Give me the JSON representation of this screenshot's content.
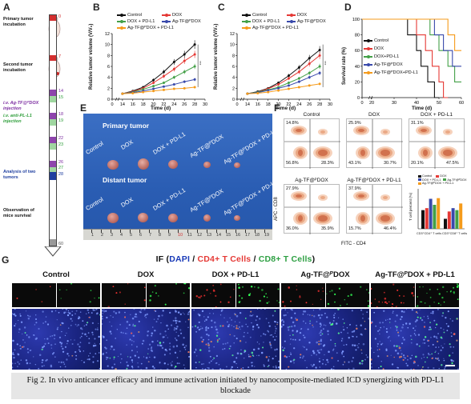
{
  "panels": {
    "A": "A",
    "B": "B",
    "C": "C",
    "D": "D",
    "E": "E",
    "F": "F",
    "G": "G"
  },
  "timeline": {
    "ticks": [
      "0",
      "7",
      "14",
      "15",
      "18",
      "19",
      "22",
      "23",
      "26",
      "27",
      "28",
      "60"
    ],
    "events": {
      "primary": "Primary tumor incubation",
      "second": "Second tumor incubation",
      "iv": "i.v. Ag-TF@ᴾDOX injection",
      "ip": "i.v. anti-PL-L1 injection",
      "analysis": "Analysis of two tumors",
      "observation": "Observation of mice survival"
    }
  },
  "legend_tumor": {
    "control": "Control",
    "dox": "DOX",
    "dox_pdl1": "DOX + PD-L1",
    "agtf_dox": "Ag-TF@ᴾDOX",
    "agtf_dox_pdl1": "Ag-TF@ᴾDOX + PD-L1"
  },
  "legend_survival": {
    "control": "Control",
    "dox": "DOX",
    "dox_pdl1": "DOX+PD-L1",
    "agtf_dox": "Ag-TF@ᴾDOX",
    "agtf_dox_pdl1": "Ag-TF@ᴾDOX+PD-L1"
  },
  "colors": {
    "control": "#111111",
    "dox": "#e53935",
    "dox_pdl1": "#43a047",
    "agtf_dox": "#3949ab",
    "agtf_dox_pdl1": "#f59b1b"
  },
  "chart_data": [
    {
      "panel": "B",
      "type": "line",
      "ylabel": "Relative tumor volume (V/V₀)",
      "xlabel": "Time (d)",
      "x_ticks": [
        "0",
        "14",
        "16",
        "18",
        "20",
        "22",
        "24",
        "26",
        "28",
        "30"
      ],
      "y_ticks": [
        "0",
        "2",
        "4",
        "6",
        "8",
        "10",
        "12"
      ],
      "ylim": [
        0,
        12
      ],
      "x": [
        14,
        16,
        18,
        20,
        22,
        24,
        26,
        28
      ],
      "series": [
        {
          "name": "Control",
          "values": [
            1,
            1.5,
            2.2,
            3.5,
            5,
            6.8,
            8.2,
            10
          ]
        },
        {
          "name": "DOX",
          "values": [
            1,
            1.4,
            2,
            3,
            4.2,
            5.5,
            7,
            8.2
          ]
        },
        {
          "name": "DOX + PD-L1",
          "values": [
            1,
            1.3,
            1.8,
            2.4,
            3,
            4,
            5,
            6
          ]
        },
        {
          "name": "Ag-TF@ᴾDOX",
          "values": [
            1,
            1.2,
            1.5,
            1.9,
            2.3,
            2.7,
            3.2,
            3.6
          ]
        },
        {
          "name": "Ag-TF@ᴾDOX + PD-L1",
          "values": [
            1,
            1.1,
            1.3,
            1.5,
            1.7,
            1.9,
            2,
            2.2
          ]
        }
      ]
    },
    {
      "panel": "C",
      "type": "line",
      "ylabel": "Relative tumor volume (V/V₀)",
      "xlabel": "Time (d)",
      "x_ticks": [
        "0",
        "14",
        "16",
        "18",
        "20",
        "22",
        "24",
        "26",
        "28",
        "30"
      ],
      "y_ticks": [
        "0",
        "2",
        "4",
        "6",
        "8",
        "10",
        "12"
      ],
      "ylim": [
        0,
        12
      ],
      "x": [
        14,
        16,
        18,
        20,
        22,
        24,
        26,
        28
      ],
      "series": [
        {
          "name": "Control",
          "values": [
            1,
            1.4,
            2,
            3,
            4.3,
            5.8,
            7.5,
            9
          ]
        },
        {
          "name": "DOX",
          "values": [
            1,
            1.3,
            1.9,
            2.7,
            3.8,
            5,
            6.5,
            8
          ]
        },
        {
          "name": "DOX + PD-L1",
          "values": [
            1,
            1.3,
            1.7,
            2.2,
            3,
            3.8,
            4.8,
            6
          ]
        },
        {
          "name": "Ag-TF@ᴾDOX",
          "values": [
            1,
            1.2,
            1.6,
            2,
            2.5,
            3.2,
            4,
            4.8
          ]
        },
        {
          "name": "Ag-TF@ᴾDOX + PD-L1",
          "values": [
            1,
            1.1,
            1.3,
            1.6,
            1.9,
            2.2,
            2.5,
            2.8
          ]
        }
      ]
    },
    {
      "panel": "D",
      "type": "line",
      "ylabel": "Survival rate (%)",
      "xlabel": "Time (d)",
      "x_ticks": [
        "0",
        "20",
        "30",
        "40",
        "50",
        "60"
      ],
      "y_ticks": [
        "0",
        "20",
        "40",
        "60",
        "80",
        "100"
      ],
      "ylim": [
        0,
        100
      ]
    }
  ],
  "photo": {
    "primary": "Primary tumor",
    "distant": "Distant tumor",
    "groups": [
      "Control",
      "DOX",
      "DOX + PD-L1",
      "Ag-TF@ᴾDOX",
      "Ag-TF@ᴾDOX + PD-L1"
    ],
    "ruler": [
      "1",
      "2",
      "3",
      "4",
      "5",
      "6",
      "7",
      "8",
      "9",
      "10",
      "11",
      "12",
      "13",
      "14",
      "15",
      "16",
      "17",
      "18",
      "19"
    ]
  },
  "flow": {
    "yaxis": "APC - CD8",
    "xaxis": "FITC - CD4",
    "plots": [
      {
        "title": "Control",
        "tl": "14.8%",
        "bl": "56.8%",
        "br": "28.3%"
      },
      {
        "title": "DOX",
        "tl": "25.9%",
        "bl": "43.1%",
        "br": "30.7%"
      },
      {
        "title": "DOX + PD-L1",
        "tl": "31.1%",
        "bl": "20.1%",
        "br": "47.5%"
      },
      {
        "title": "Ag-TF@ᴾDOX",
        "tl": "27.9%",
        "bl": "36.0%",
        "br": "35.9%"
      },
      {
        "title": "Ag-TF@ᴾDOX + PD-L1",
        "tl": "37.9%",
        "bl": "15.7%",
        "br": "46.4%"
      }
    ],
    "bar_ylabel": "T cell percent (%)",
    "bar_legend": [
      "Control",
      "DOX",
      "DOX + PD-L1",
      "Ag-TF@ᴾDOX",
      "Ag-TF@ᴾDOX + PD-L1"
    ],
    "bar_xlabels": [
      "CD3⁺CD4⁺ T cells",
      "CD3⁺CD8⁺ T cells"
    ]
  },
  "if": {
    "title_prefix": "IF (",
    "dapi": "DAPI",
    "sep1": " / ",
    "cd4": "CD4+ T Cells",
    "sep2": " / ",
    "cd8": "CD8+ T Cells",
    "title_suffix": ")",
    "groups": [
      "Control",
      "DOX",
      "DOX + PD-L1",
      "Ag-TF@ᴾDOX",
      "Ag-TF@ᴾDOX + PD-L1"
    ]
  },
  "caption": "Fig 2.  In vivo anticancer efficacy and immune activation initiated by nanocomposite-mediated ICD synergizing with PD-L1 blockade"
}
